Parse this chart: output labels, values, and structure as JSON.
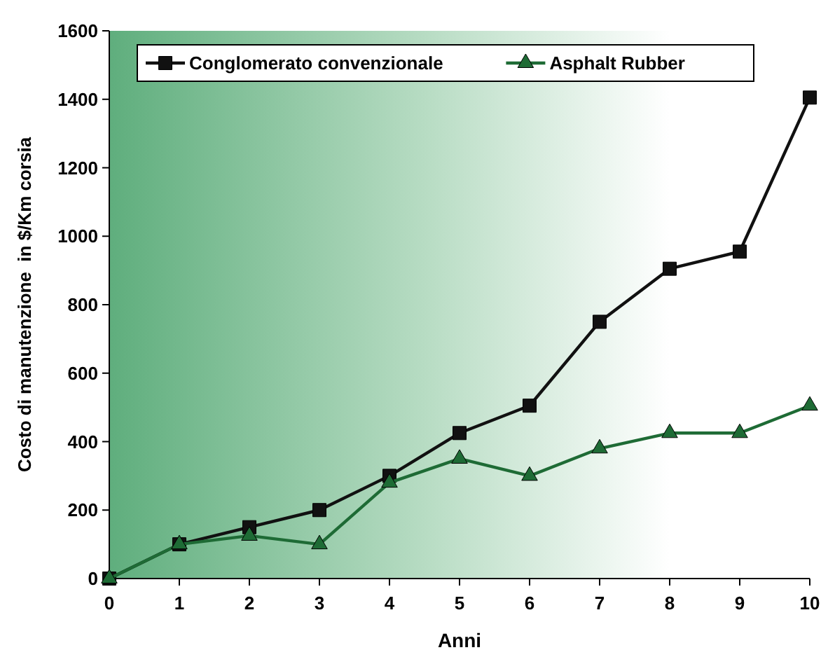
{
  "chart_data": {
    "type": "line",
    "xlabel": "Anni",
    "ylabel": "Costo di manutenzione  in $/Km corsia",
    "x": [
      0,
      1,
      2,
      3,
      4,
      5,
      6,
      7,
      8,
      9,
      10
    ],
    "xlim": [
      0,
      10
    ],
    "xticks": [
      0,
      1,
      2,
      3,
      4,
      5,
      6,
      7,
      8,
      9,
      10
    ],
    "ylim": [
      0,
      1600
    ],
    "yticks": [
      0,
      200,
      400,
      600,
      800,
      1000,
      1200,
      1400,
      1600
    ],
    "grid": false,
    "legend": "top left",
    "series": [
      {
        "name": "Conglomerato convenzionale",
        "color": "#111111",
        "marker": "square",
        "values": [
          0,
          100,
          150,
          200,
          300,
          425,
          505,
          750,
          905,
          955,
          1405
        ]
      },
      {
        "name": "Asphalt Rubber",
        "color": "#1e6b35",
        "marker": "triangle",
        "values": [
          0,
          100,
          125,
          100,
          280,
          350,
          300,
          380,
          425,
          425,
          505
        ]
      }
    ]
  }
}
